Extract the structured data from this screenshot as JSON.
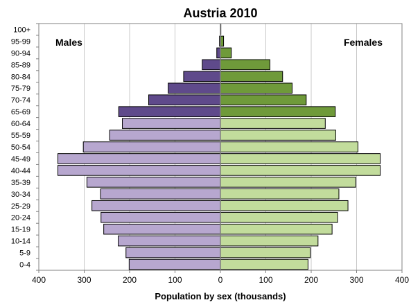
{
  "chart_data": {
    "type": "bar",
    "orientation": "horizontal",
    "title": "Austria 2010",
    "xlabel": "Population by sex (thousands)",
    "ylabel": "",
    "xlim": [
      -400,
      400
    ],
    "x_ticks": [
      -400,
      -300,
      -200,
      -100,
      0,
      100,
      200,
      300,
      400
    ],
    "x_tick_labels": [
      "400",
      "300",
      "200",
      "100",
      "0",
      "100",
      "200",
      "300",
      "400"
    ],
    "grid": true,
    "categories": [
      "0-4",
      "5-9",
      "10-14",
      "15-19",
      "20-24",
      "25-29",
      "30-34",
      "35-39",
      "40-44",
      "45-49",
      "50-54",
      "55-59",
      "60-64",
      "65-69",
      "70-74",
      "75-79",
      "80-84",
      "85-89",
      "90-94",
      "95-99",
      "100+"
    ],
    "series": [
      {
        "name": "Males",
        "values": [
          201,
          208,
          225,
          257,
          263,
          283,
          264,
          294,
          358,
          358,
          302,
          244,
          216,
          224,
          158,
          115,
          81,
          40,
          8,
          2,
          0
        ]
      },
      {
        "name": "Females",
        "values": [
          193,
          198,
          215,
          246,
          258,
          281,
          261,
          298,
          352,
          352,
          303,
          254,
          231,
          253,
          189,
          158,
          137,
          109,
          24,
          7,
          1
        ]
      }
    ],
    "series_label_placement": [
      "top-left",
      "top-right"
    ],
    "colors": {
      "males_light": "#b7a7cf",
      "males_dark": "#5f4a8b",
      "females_light": "#c2dc9c",
      "females_dark": "#6f9a3a",
      "gradient_split_age": "65-69"
    }
  }
}
